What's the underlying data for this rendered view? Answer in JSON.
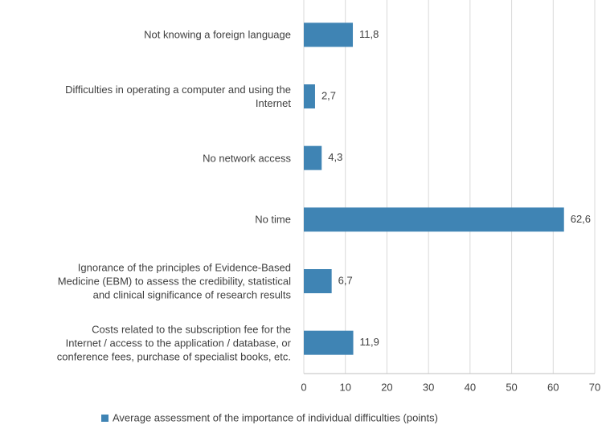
{
  "chart_data": {
    "type": "barh",
    "categories": [
      "Not knowing a foreign language",
      "Difficulties in operating a computer and using the\nInternet",
      "No network access",
      "No time",
      "Ignorance of the principles of Evidence-Based\nMedicine (EBM) to assess the credibility, statistical\nand clinical significance of research results",
      "Costs related to the subscription fee for the\nInternet / access to the application / database, or\nconference fees, purchase of specialist books, etc."
    ],
    "series": [
      {
        "name": "Average assessment of the importance of individual difficulties (points)",
        "color": "#3f84b4",
        "values": [
          11.8,
          2.7,
          4.3,
          62.6,
          6.7,
          11.9
        ],
        "value_labels": [
          "11,8",
          "2,7",
          "4,3",
          "62,6",
          "6,7",
          "11,9"
        ]
      }
    ],
    "xlim": [
      0,
      70
    ],
    "xticks": [
      0,
      10,
      20,
      30,
      40,
      50,
      60,
      70
    ],
    "grid": true,
    "legend": "bottom"
  }
}
